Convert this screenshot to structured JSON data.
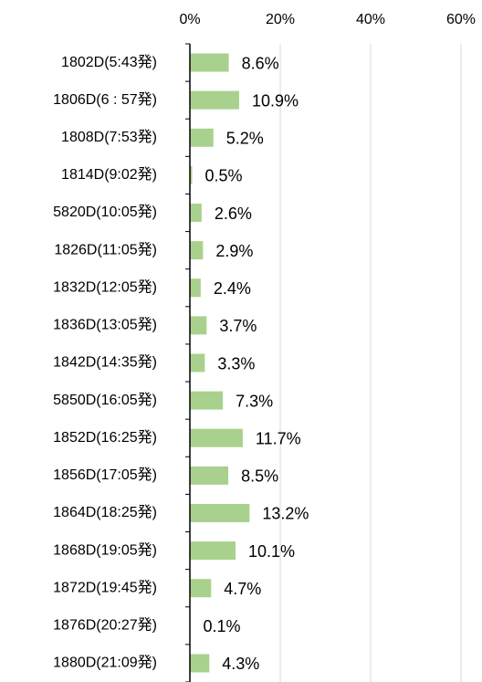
{
  "chart_data": {
    "type": "bar",
    "orientation": "horizontal",
    "categories": [
      "1802D(5:43発)",
      "1806D(6 : 57発)",
      "1808D(7:53発)",
      "1814D(9:02発)",
      "5820D(10:05発)",
      "1826D(11:05発)",
      "1832D(12:05発)",
      "1836D(13:05発)",
      "1842D(14:35発)",
      "5850D(16:05発)",
      "1852D(16:25発)",
      "1856D(17:05発)",
      "1864D(18:25発)",
      "1868D(19:05発)",
      "1872D(19:45発)",
      "1876D(20:27発)",
      "1880D(21:09発)"
    ],
    "values": [
      8.6,
      10.9,
      5.2,
      0.5,
      2.6,
      2.9,
      2.4,
      3.7,
      3.3,
      7.3,
      11.7,
      8.5,
      13.2,
      10.1,
      4.7,
      0.1,
      4.3
    ],
    "value_labels": [
      "8.6%",
      "10.9%",
      "5.2%",
      "0.5%",
      "2.6%",
      "2.9%",
      "2.4%",
      "3.7%",
      "3.3%",
      "7.3%",
      "11.7%",
      "8.5%",
      "13.2%",
      "10.1%",
      "4.7%",
      "0.1%",
      "4.3%"
    ],
    "color": "#a9d18e",
    "xlim": [
      0,
      60
    ],
    "xticks": [
      {
        "value": 0,
        "label": "0%"
      },
      {
        "value": 20,
        "label": "20%"
      },
      {
        "value": 40,
        "label": "40%"
      },
      {
        "value": 60,
        "label": "60%"
      }
    ],
    "grid": true
  }
}
